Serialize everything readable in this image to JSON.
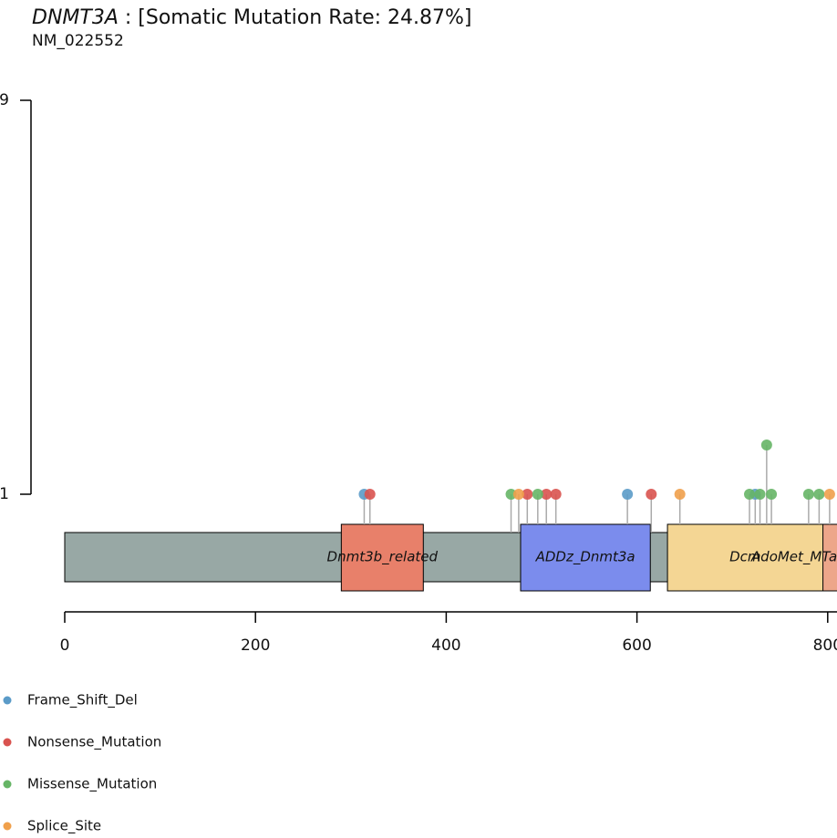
{
  "chart_data": {
    "type": "lollipop",
    "gene": "DNMT3A",
    "title": " : [Somatic Mutation Rate: 24.87%]",
    "subtitle": "NM_022552",
    "xlim": [
      0,
      912
    ],
    "xticks": [
      0,
      200,
      400,
      600,
      800
    ],
    "ylim": [
      1,
      9
    ],
    "yticks": [
      1,
      9
    ],
    "protein_color": "#98a8a5",
    "domains": [
      {
        "name": "Dnmt3b_related",
        "color": "#e8806a",
        "start": 290,
        "end": 376
      },
      {
        "name": "ADDz_Dnmt3a",
        "color": "#7b8ced",
        "start": 478,
        "end": 614
      },
      {
        "name": "AdoMet_MTase",
        "color": "#eda68a",
        "start": 634,
        "end": 912
      },
      {
        "name": "Dcm",
        "color": "#f4d694",
        "start": 632,
        "end": 795
      }
    ],
    "series": [
      {
        "name": "Frame_Shift_Del",
        "color": "#5b9bc8",
        "x": [
          314,
          590,
          724
        ],
        "values": [
          1,
          1,
          1
        ]
      },
      {
        "name": "Nonsense_Mutation",
        "color": "#d9534f",
        "x": [
          320,
          485,
          505,
          515,
          615
        ],
        "values": [
          1,
          1,
          1,
          1,
          1
        ]
      },
      {
        "name": "Missense_Mutation",
        "color": "#66b566",
        "x": [
          468,
          496,
          718,
          729,
          736,
          741,
          780,
          791
        ],
        "values": [
          1,
          1,
          1,
          1,
          2,
          1,
          1,
          1
        ]
      },
      {
        "name": "Splice_Site",
        "color": "#f0a04b",
        "x": [
          476,
          645,
          802
        ],
        "values": [
          1,
          1,
          1
        ]
      }
    ]
  }
}
